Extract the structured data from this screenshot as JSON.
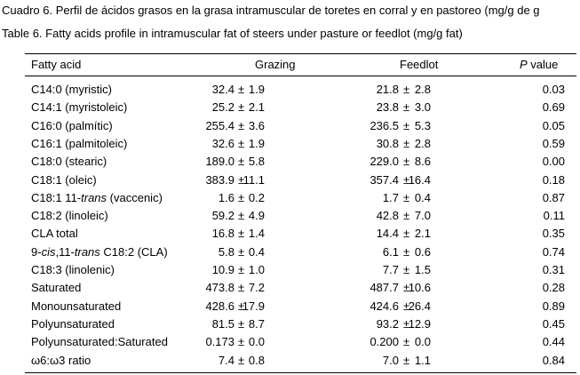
{
  "caption_es": "Cuadro 6.  Perfil de ácidos grasos en la grasa intramuscular de toretes en corral y en pastoreo (mg/g de g",
  "caption_en": "Table 6.  Fatty acids profile in intramuscular fat of steers under pasture or feedlot (mg/g fat)",
  "table": {
    "header": {
      "fatty_acid": "Fatty acid",
      "grazing": "Grazing",
      "feedlot": "Feedlot",
      "p_label": "P",
      "p_rest": "value"
    },
    "plus_minus": "±",
    "rows": [
      {
        "name": "C14:0 (myristic)",
        "grazing": "32.4",
        "grazing_sd": "1.9",
        "feedlot": "21.8",
        "feedlot_sd": "2.8",
        "p": "0.03"
      },
      {
        "name": "C14:1 (myristoleic)",
        "grazing": "25.2",
        "grazing_sd": "2.1",
        "feedlot": "23.8",
        "feedlot_sd": "3.0",
        "p": "0.69"
      },
      {
        "name": "C16:0 (palmític)",
        "grazing": "255.4",
        "grazing_sd": "3.6",
        "feedlot": "236.5",
        "feedlot_sd": "5.3",
        "p": "0.05"
      },
      {
        "name": "C16:1 (palmitoleic)",
        "grazing": "32.6",
        "grazing_sd": "1.9",
        "feedlot": "30.8",
        "feedlot_sd": "2.8",
        "p": "0.59"
      },
      {
        "name": "C18:0 (stearic)",
        "grazing": "189.0",
        "grazing_sd": "5.8",
        "feedlot": "229.0",
        "feedlot_sd": "8.6",
        "p": "0.00"
      },
      {
        "name": "C18:1 (oleic)",
        "grazing": "383.9",
        "grazing_sd": "11.1",
        "feedlot": "357.4",
        "feedlot_sd": "16.4",
        "p": "0.18"
      },
      {
        "name": [
          "C18:1 11-",
          "trans",
          " (vaccenic)"
        ],
        "grazing": "1.6",
        "grazing_sd": "0.2",
        "feedlot": "1.7",
        "feedlot_sd": "0.4",
        "p": "0.87"
      },
      {
        "name": "C18:2 (linoleic)",
        "grazing": "59.2",
        "grazing_sd": "4.9",
        "feedlot": "42.8",
        "feedlot_sd": "7.0",
        "p": "0.11"
      },
      {
        "name": "CLA total",
        "grazing": "16.8",
        "grazing_sd": "1.4",
        "feedlot": "14.4",
        "feedlot_sd": "2.1",
        "p": "0.35"
      },
      {
        "name": [
          "9-",
          "cis",
          ",11-",
          "trans",
          " C18:2 (CLA)"
        ],
        "grazing": "5.8",
        "grazing_sd": "0.4",
        "feedlot": "6.1",
        "feedlot_sd": "0.6",
        "p": "0.74"
      },
      {
        "name": "C18:3 (linolenic)",
        "grazing": "10.9",
        "grazing_sd": "1.0",
        "feedlot": "7.7",
        "feedlot_sd": "1.5",
        "p": "0.31"
      },
      {
        "name": "Saturated",
        "grazing": "473.8",
        "grazing_sd": "7.2",
        "feedlot": "487.7",
        "feedlot_sd": "10.6",
        "p": "0.28"
      },
      {
        "name": "Monounsaturated",
        "grazing": "428.6",
        "grazing_sd": "17.9",
        "feedlot": "424.6",
        "feedlot_sd": "26.4",
        "p": "0.89"
      },
      {
        "name": "Polyunsaturated",
        "grazing": "81.5",
        "grazing_sd": "8.7",
        "feedlot": "93.2",
        "feedlot_sd": "12.9",
        "p": "0.45"
      },
      {
        "name": "Polyunsaturated:Saturated",
        "grazing": "0.173",
        "grazing_sd": "0.0",
        "feedlot": "0.200",
        "feedlot_sd": "0.0",
        "p": "0.44"
      },
      {
        "name": "ω6:ω3 ratio",
        "grazing": "7.4",
        "grazing_sd": "0.8",
        "feedlot": "7.0",
        "feedlot_sd": "1.1",
        "p": "0.84"
      }
    ]
  }
}
